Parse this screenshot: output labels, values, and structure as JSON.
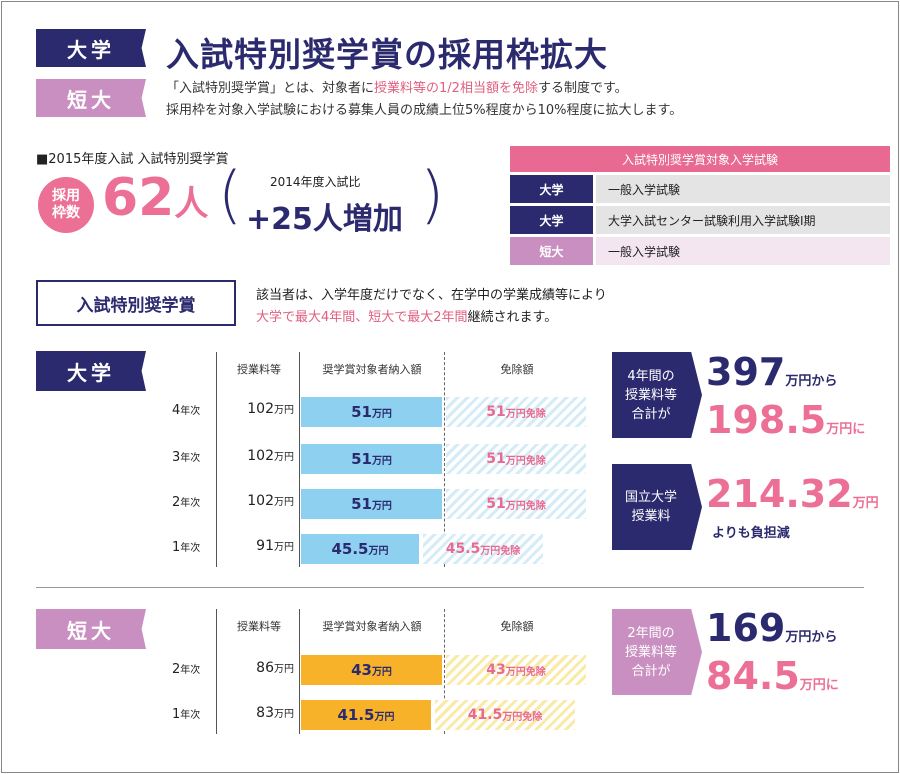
{
  "header": {
    "tag_university": "大学",
    "tag_junior": "短大",
    "title": "入試特別奨学賞の採用枠拡大",
    "intro_line1_a": "「入試特別奨学賞」とは、対象者に",
    "intro_line1_b": "授業料等の1/2相当額を免除",
    "intro_line1_c": "する制度です。",
    "intro_line2": "採用枠を対象入学試験における募集人員の成績上位5%程度から10%程度に拡大します。"
  },
  "quota": {
    "heading": "■2015年度入試 入試特別奨学賞",
    "circle_line1": "採用",
    "circle_line2": "枠数",
    "count_number": "62",
    "count_unit": "人",
    "compare_label": "2014年度入試比",
    "compare_value": "+25人増加"
  },
  "exam_table": {
    "header": "入試特別奨学賞対象入学試験",
    "rows": [
      {
        "type": "大学",
        "exam": "一般入学試験",
        "kind": "univ"
      },
      {
        "type": "大学",
        "exam": "大学入試センター試験利用入学試験Ⅰ期",
        "kind": "univ"
      },
      {
        "type": "短大",
        "exam": "一般入学試験",
        "kind": "junior"
      }
    ]
  },
  "scholarship": {
    "label": "入試特別奨学賞",
    "desc_line1": "該当者は、入学年度だけでなく、在学中の学業成績等により",
    "desc_line2_pink": "大学で最大4年間、短大で最大2年間",
    "desc_line2_rest": "継続されます。"
  },
  "columns": {
    "tuition": "授業料等",
    "payment": "奨学賞対象者納入額",
    "exemption": "免除額"
  },
  "units": {
    "year": "年次",
    "man_yen": "万円",
    "exempt_suffix": "万円免除"
  },
  "university": {
    "tag": "大学",
    "rows": [
      {
        "year": "4",
        "tuition": "102",
        "payment": "51",
        "exemption": "51"
      },
      {
        "year": "3",
        "tuition": "102",
        "payment": "51",
        "exemption": "51"
      },
      {
        "year": "2",
        "tuition": "102",
        "payment": "51",
        "exemption": "51"
      },
      {
        "year": "1",
        "tuition": "91",
        "payment": "45.5",
        "exemption": "45.5"
      }
    ],
    "summary": {
      "arrow_line1": "4年間の",
      "arrow_line2": "授業料等",
      "arrow_line3": "合計が",
      "from_value": "397",
      "from_unit": "万円から",
      "to_value": "198.5",
      "to_unit": "万円に"
    },
    "national": {
      "arrow_line1": "国立大学",
      "arrow_line2": "授業料",
      "value": "214.32",
      "unit": "万円",
      "sub": "よりも負担減"
    }
  },
  "junior": {
    "tag": "短大",
    "rows": [
      {
        "year": "2",
        "tuition": "86",
        "payment": "43",
        "exemption": "43"
      },
      {
        "year": "1",
        "tuition": "83",
        "payment": "41.5",
        "exemption": "41.5"
      }
    ],
    "summary": {
      "arrow_line1": "2年間の",
      "arrow_line2": "授業料等",
      "arrow_line3": "合計が",
      "from_value": "169",
      "from_unit": "万円から",
      "to_value": "84.5",
      "to_unit": "万円に"
    }
  },
  "colors": {
    "navy": "#2b2a6e",
    "pink": "#ec6f95",
    "lavender": "#c98fc0",
    "sky": "#8ed0f0",
    "orange": "#f7b22a"
  }
}
